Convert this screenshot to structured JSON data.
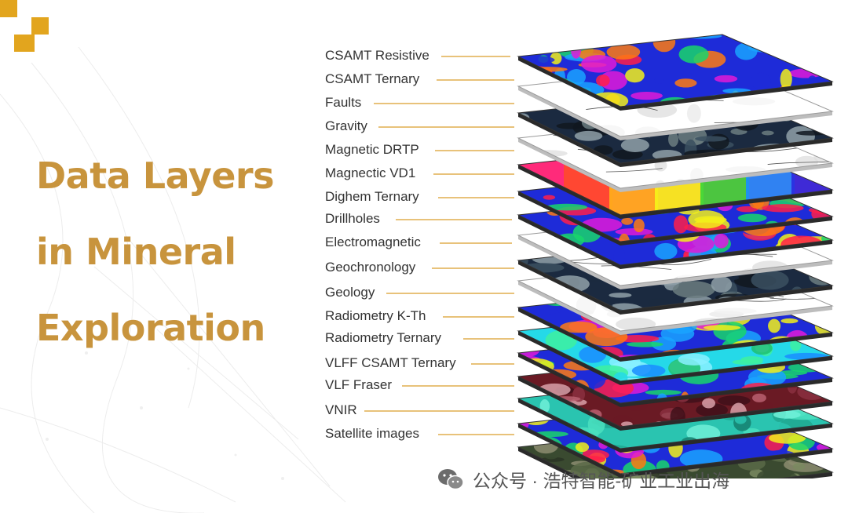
{
  "title": {
    "line1": "Data Layers",
    "line2": "in Mineral",
    "line3": "Exploration"
  },
  "colors": {
    "title": "#c8943d",
    "logo": "#e2a51e",
    "leader_line": "#e8c27a",
    "label_text": "#333333"
  },
  "layers": [
    {
      "label": "CSAMT Resistive",
      "style": "rainbow"
    },
    {
      "label": "CSAMT Ternary",
      "style": "white"
    },
    {
      "label": "Faults",
      "style": "dark"
    },
    {
      "label": "Gravity",
      "style": "white"
    },
    {
      "label": "Magnetic DRTP",
      "style": "gradient"
    },
    {
      "label": "Magnectic VD1",
      "style": "rainbow"
    },
    {
      "label": "Dighem Ternary",
      "style": "rainbow"
    },
    {
      "label": "Drillholes",
      "style": "white"
    },
    {
      "label": "Electromagnetic",
      "style": "dark"
    },
    {
      "label": "Geochronology",
      "style": "white"
    },
    {
      "label": "Geology",
      "style": "rainbow"
    },
    {
      "label": "Radiometry K-Th",
      "style": "cyan"
    },
    {
      "label": "Radiometry Ternary",
      "style": "rainbow"
    },
    {
      "label": "VLFF CSAMT Ternary",
      "style": "maroon"
    },
    {
      "label": "VLF Fraser",
      "style": "teal"
    },
    {
      "label": "VNIR",
      "style": "rainbow"
    },
    {
      "label": "Satellite images",
      "style": "satellite"
    }
  ],
  "watermark": {
    "icon": "wechat-icon",
    "text": "公众号 · 浩特智能-矿业工业出海"
  }
}
